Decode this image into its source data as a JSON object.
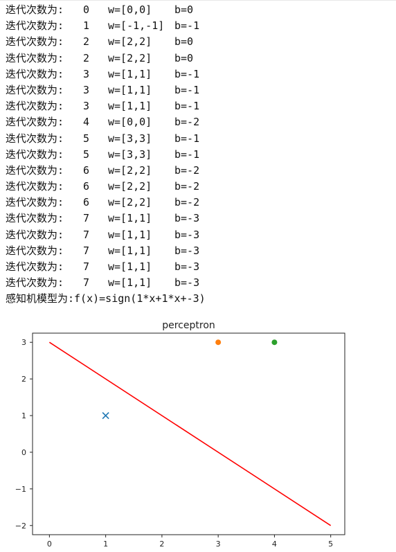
{
  "log": {
    "lines": [
      {
        "prefix": "迭代次数为:",
        "iter": "0",
        "w": "w=[0,0]",
        "b": "b=0"
      },
      {
        "prefix": "迭代次数为:",
        "iter": "1",
        "w": "w=[-1,-1]",
        "b": "b=-1"
      },
      {
        "prefix": "迭代次数为:",
        "iter": "2",
        "w": "w=[2,2]",
        "b": "b=0"
      },
      {
        "prefix": "迭代次数为:",
        "iter": "2",
        "w": "w=[2,2]",
        "b": "b=0"
      },
      {
        "prefix": "迭代次数为:",
        "iter": "3",
        "w": "w=[1,1]",
        "b": "b=-1"
      },
      {
        "prefix": "迭代次数为:",
        "iter": "3",
        "w": "w=[1,1]",
        "b": "b=-1"
      },
      {
        "prefix": "迭代次数为:",
        "iter": "3",
        "w": "w=[1,1]",
        "b": "b=-1"
      },
      {
        "prefix": "迭代次数为:",
        "iter": "4",
        "w": "w=[0,0]",
        "b": "b=-2"
      },
      {
        "prefix": "迭代次数为:",
        "iter": "5",
        "w": "w=[3,3]",
        "b": "b=-1"
      },
      {
        "prefix": "迭代次数为:",
        "iter": "5",
        "w": "w=[3,3]",
        "b": "b=-1"
      },
      {
        "prefix": "迭代次数为:",
        "iter": "6",
        "w": "w=[2,2]",
        "b": "b=-2"
      },
      {
        "prefix": "迭代次数为:",
        "iter": "6",
        "w": "w=[2,2]",
        "b": "b=-2"
      },
      {
        "prefix": "迭代次数为:",
        "iter": "6",
        "w": "w=[2,2]",
        "b": "b=-2"
      },
      {
        "prefix": "迭代次数为:",
        "iter": "7",
        "w": "w=[1,1]",
        "b": "b=-3"
      },
      {
        "prefix": "迭代次数为:",
        "iter": "7",
        "w": "w=[1,1]",
        "b": "b=-3"
      },
      {
        "prefix": "迭代次数为:",
        "iter": "7",
        "w": "w=[1,1]",
        "b": "b=-3"
      },
      {
        "prefix": "迭代次数为:",
        "iter": "7",
        "w": "w=[1,1]",
        "b": "b=-3"
      },
      {
        "prefix": "迭代次数为:",
        "iter": "7",
        "w": "w=[1,1]",
        "b": "b=-3"
      }
    ],
    "final_model": "感知机模型为:f(x)=sign(1*x+1*x+-3)"
  },
  "chart_data": {
    "type": "scatter",
    "title": "perceptron",
    "xlabel": "",
    "ylabel": "",
    "xlim": [
      -0.3,
      5.25
    ],
    "ylim": [
      -2.25,
      3.25
    ],
    "xticks": [
      0,
      1,
      2,
      3,
      4,
      5
    ],
    "yticks": [
      3,
      2,
      1,
      0,
      -1,
      -2
    ],
    "grid": false,
    "points": [
      {
        "x": 1,
        "y": 1,
        "marker": "x",
        "color": "#1f77b4"
      },
      {
        "x": 3,
        "y": 3,
        "marker": "o",
        "color": "#ff7f0e"
      },
      {
        "x": 4,
        "y": 3,
        "marker": "o",
        "color": "#2ca02c"
      }
    ],
    "line": {
      "x": [
        0,
        5
      ],
      "y": [
        3,
        -2
      ],
      "color": "#ff0000"
    }
  }
}
